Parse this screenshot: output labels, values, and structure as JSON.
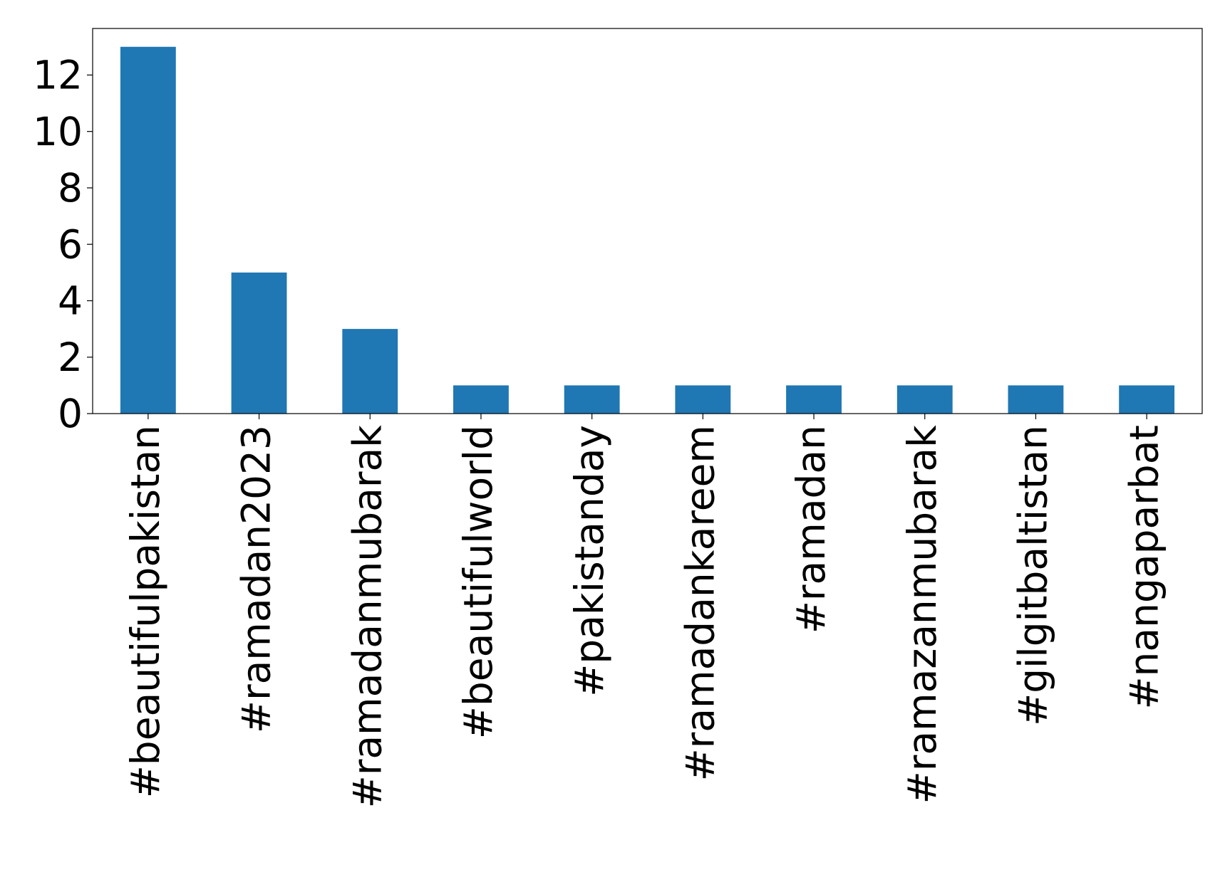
{
  "chart_data": {
    "type": "bar",
    "categories": [
      "#beautifulpakistan",
      "#ramadan2023",
      "#ramadanmubarak",
      "#beautifulworld",
      "#pakistanday",
      "#ramadankareem",
      "#ramadan",
      "#ramazanmubarak",
      "#gilgitbaltistan",
      "#nangaparbat"
    ],
    "values": [
      13,
      5,
      3,
      1,
      1,
      1,
      1,
      1,
      1,
      1
    ],
    "color": "#1f77b4",
    "ylim": [
      0,
      13.65
    ],
    "yticks": [
      0,
      2,
      4,
      6,
      8,
      10,
      12
    ],
    "grid": false
  }
}
